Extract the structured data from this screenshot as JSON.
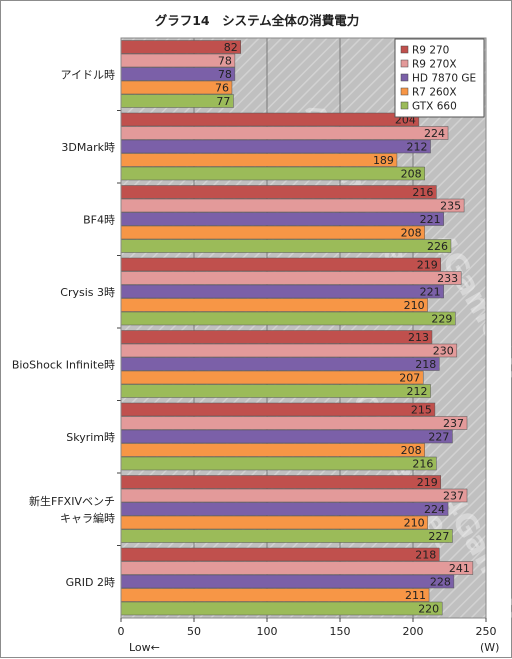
{
  "chart_data": {
    "type": "bar",
    "orientation": "horizontal",
    "title": "グラフ14　システム全体の消費電力",
    "categories": [
      [
        "アイドル時"
      ],
      [
        "3DMark時"
      ],
      [
        "BF4時"
      ],
      [
        "Crysis 3時"
      ],
      [
        "BioShock Infinite時"
      ],
      [
        "Skyrim時"
      ],
      [
        "新生FFXIVベンチ",
        "キャラ編時"
      ],
      [
        "GRID 2時"
      ]
    ],
    "series": [
      {
        "name": "R9 270",
        "color": "#c0504d",
        "values": [
          82,
          204,
          216,
          219,
          213,
          215,
          219,
          218
        ]
      },
      {
        "name": "R9 270X",
        "color": "#e39a9a",
        "values": [
          78,
          224,
          235,
          233,
          230,
          237,
          237,
          241
        ]
      },
      {
        "name": "HD 7870 GE",
        "color": "#7b60a8",
        "values": [
          78,
          212,
          221,
          221,
          218,
          227,
          224,
          228
        ]
      },
      {
        "name": "R7 260X",
        "color": "#f79646",
        "values": [
          76,
          189,
          208,
          210,
          207,
          208,
          210,
          211
        ]
      },
      {
        "name": "GTX 660",
        "color": "#9bbb59",
        "values": [
          77,
          208,
          226,
          229,
          212,
          216,
          227,
          220
        ]
      }
    ],
    "xlim": [
      0,
      250
    ],
    "xticks": [
      "0",
      "50",
      "100",
      "150",
      "200",
      "250"
    ],
    "x_unit_label": "(W)",
    "direction_note": "Low←",
    "grid": "vertical",
    "legend_position": "top-right",
    "plot_background": "#c0c0c0",
    "watermark": "4Gamer.net"
  }
}
